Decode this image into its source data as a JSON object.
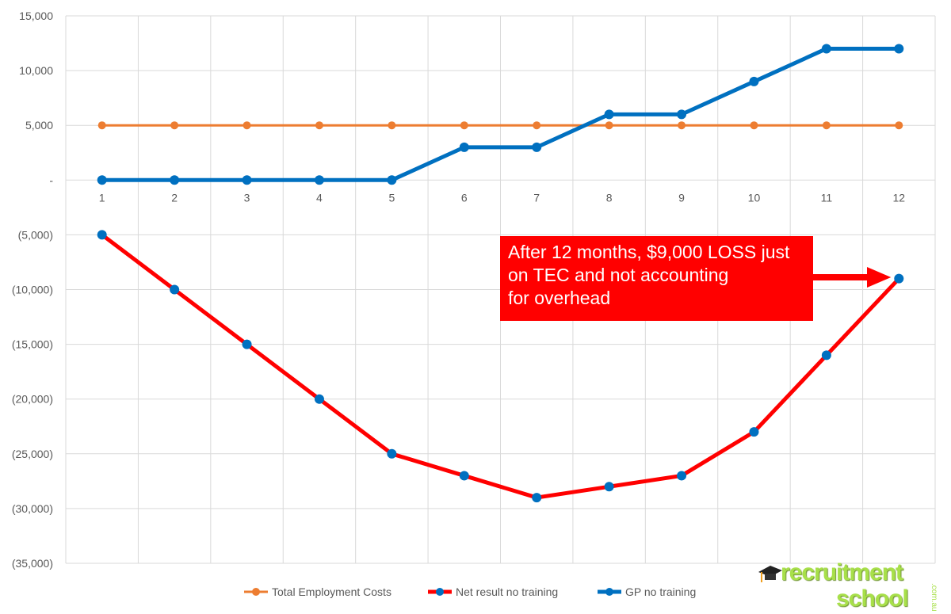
{
  "chart_data": {
    "type": "line",
    "title": "",
    "xlabel": "",
    "ylabel": "",
    "x": [
      1,
      2,
      3,
      4,
      5,
      6,
      7,
      8,
      9,
      10,
      11,
      12
    ],
    "ylim": [
      -35000,
      15000
    ],
    "yticks": [
      15000,
      10000,
      5000,
      0,
      -5000,
      -10000,
      -15000,
      -20000,
      -25000,
      -30000,
      -35000
    ],
    "ytick_labels": [
      "15,000",
      "10,000",
      "5,000",
      "-",
      "(5,000)",
      "(10,000)",
      "(15,000)",
      "(20,000)",
      "(25,000)",
      "(30,000)",
      "(35,000)"
    ],
    "grid": true,
    "legend_position": "bottom",
    "series": [
      {
        "name": "Total Employment Costs",
        "color": "#ed7d31",
        "marker_color": "#ed7d31",
        "values": [
          5000,
          5000,
          5000,
          5000,
          5000,
          5000,
          5000,
          5000,
          5000,
          5000,
          5000,
          5000
        ]
      },
      {
        "name": "Net result no training",
        "color": "#ff0000",
        "marker_color": "#0070c0",
        "values": [
          -5000,
          -10000,
          -15000,
          -20000,
          -25000,
          -27000,
          -29000,
          -28000,
          -27000,
          -23000,
          -16000,
          -9000
        ]
      },
      {
        "name": "GP no training",
        "color": "#0070c0",
        "marker_color": "#0070c0",
        "values": [
          0,
          0,
          0,
          0,
          0,
          3000,
          3000,
          6000,
          6000,
          9000,
          12000,
          12000
        ]
      }
    ],
    "annotation": {
      "text": "After 12 months, $9,000 LOSS just\non TEC and not accounting\nfor overhead",
      "color": "#ff0000",
      "points_to_x": 12
    }
  },
  "logo": {
    "line1": "recruitment",
    "line2": "school",
    "suffix": ".com.au"
  }
}
